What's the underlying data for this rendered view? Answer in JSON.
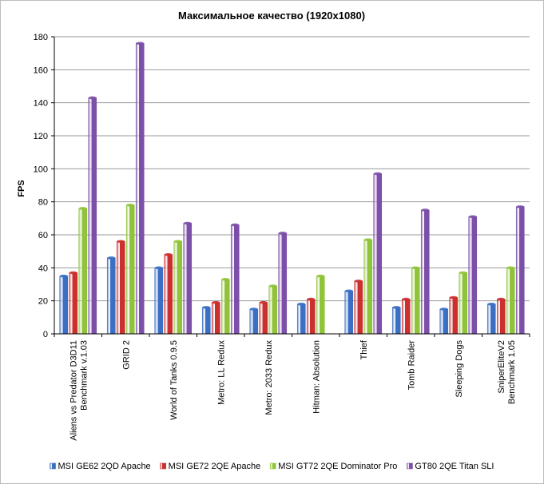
{
  "chart_data": {
    "type": "bar",
    "title": "Максимальное качество (1920x1080)",
    "ylabel": "FPS",
    "xlabel": "",
    "ylim": [
      0,
      180
    ],
    "ystep": 20,
    "grid": true,
    "legend_position": "bottom",
    "categories": [
      [
        "Aliens vs Predator D3D11",
        "Benchmark v.1.03"
      ],
      [
        "GRID 2"
      ],
      [
        "World of Tanks 0.9.5"
      ],
      [
        "Metro: LL Redux"
      ],
      [
        "Metro: 2033 Redux"
      ],
      [
        "Hitman: Absolution"
      ],
      [
        "Thief"
      ],
      [
        "Tomb Raider"
      ],
      [
        "Sleeping Dogs"
      ],
      [
        "SniperEliteV2",
        "Benchmark 1.05"
      ]
    ],
    "series": [
      {
        "name": "MSI GE62 2QD Apache",
        "color": "#3a6fc4",
        "values": [
          35,
          46,
          40,
          16,
          15,
          18,
          26,
          16,
          15,
          18
        ]
      },
      {
        "name": "MSI GE72 2QE Apache",
        "color": "#cc2f2f",
        "values": [
          37,
          56,
          48,
          19,
          19,
          21,
          32,
          21,
          22,
          21
        ]
      },
      {
        "name": "MSI GT72 2QE Dominator Pro",
        "color": "#8fc43a",
        "values": [
          76,
          78,
          56,
          33,
          29,
          35,
          57,
          40,
          37,
          40
        ]
      },
      {
        "name": "GT80 2QE Titan SLI",
        "color": "#7c4fa8",
        "values": [
          143,
          176,
          67,
          66,
          61,
          0,
          97,
          75,
          71,
          77
        ]
      }
    ]
  }
}
